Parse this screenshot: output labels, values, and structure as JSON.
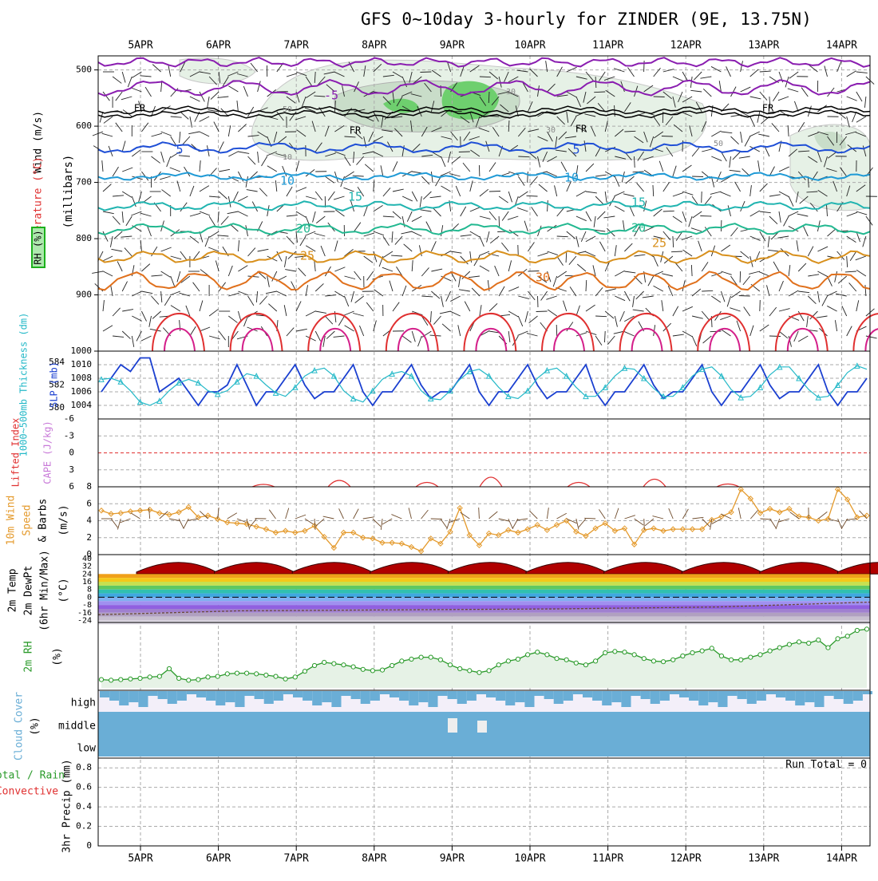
{
  "title": "GFS 0~10day 3-hourly for ZINDER (9E, 13.75N)",
  "run_total_label": "Run Total = 0",
  "date_labels": [
    "5APR",
    "6APR",
    "7APR",
    "8APR",
    "9APR",
    "10APR",
    "11APR",
    "12APR",
    "13APR",
    "14APR"
  ],
  "colors": {
    "rh_green": "#1cb01c",
    "temp_red": "#e03030",
    "temp_purple": "#8a1db0",
    "temp_blue": "#1f4fd6",
    "temp_lightblue": "#1f9ad6",
    "temp_teal": "#20b4b0",
    "temp_green": "#22b890",
    "temp_orange": "#d8901c",
    "temp_darkorange": "#e0701c",
    "temp_magenta": "#d41f8a",
    "slp_blue": "#1a3fd0",
    "thickness_cyan": "#25b9c8",
    "lifted_red": "#e03030",
    "wind_orange": "#e49a2c",
    "rh2m_green": "#2a9a2a",
    "cloud_blue": "#6aaed6",
    "cloud_bg": "#f3eff9"
  },
  "panels": {
    "upper": {
      "ylabel_wind": "Wind (m/s)",
      "ylabel_temp": "Temperature (°C)",
      "ylabel_rh": "RH (%)",
      "ylabel_pressure": "(millibars)",
      "yticks": [
        "500",
        "600",
        "700",
        "800",
        "900",
        "1000"
      ],
      "fr_label": "FR",
      "contour_labels": [
        "-5",
        "5",
        "10",
        "15",
        "20",
        "25",
        "30"
      ],
      "rh_labels": [
        "30",
        "50",
        "10"
      ]
    },
    "slp": {
      "ylabel_thk": "1000~500mb Thickness (dm)",
      "ylabel_slp": "SLP (mb)",
      "left_ticks": [
        "584",
        "582",
        "580"
      ],
      "right_ticks": [
        "1010",
        "1008",
        "1006",
        "1004"
      ]
    },
    "cape": {
      "ylabel_li": "Lifted Index",
      "ylabel_cape": "CAPE (J/kg)",
      "ticks": [
        "-6",
        "-3",
        "0",
        "3",
        "6"
      ]
    },
    "wind10": {
      "ylabel_a": "10m Wind",
      "ylabel_b": "Speed",
      "ylabel_c": "(m/s)",
      "ylabel_d": "& Barbs",
      "ticks": [
        "8",
        "6",
        "4",
        "2",
        "0"
      ]
    },
    "temp2m": {
      "ylabel_a": "2m Temp",
      "ylabel_b": "2m DewPt",
      "ylabel_c": "(6hr Min/Max)",
      "ylabel_d": "(°C)",
      "ticks": [
        "40",
        "32",
        "24",
        "16",
        "8",
        "0",
        "-8",
        "-16",
        "-24"
      ]
    },
    "rh2m": {
      "ylabel": "2m RH",
      "unit": "(%)"
    },
    "cloud": {
      "ylabel": "Cloud Cover",
      "unit": "(%)",
      "levels": [
        "high",
        "middle",
        "low"
      ]
    },
    "precip": {
      "ylabel_a": "Total / Rain",
      "ylabel_b": "Convective",
      "ylabel_c": "3hr Precip (mm)",
      "ticks": [
        "0.8",
        "0.6",
        "0.4",
        "0.2",
        "0"
      ]
    }
  },
  "chart_data": [
    {
      "type": "line",
      "name": "sea level pressure and thickness",
      "x_unit": "3-hourly steps from 4APR 12Z",
      "series": [
        {
          "name": "SLP (mb)",
          "values": [
            1006,
            1008,
            1010,
            1009,
            1011,
            1011,
            1006,
            1007,
            1008,
            1006,
            1004,
            1006,
            1006,
            1007,
            1010,
            1007,
            1004,
            1006,
            1006,
            1008,
            1010,
            1007,
            1005,
            1006,
            1006,
            1008,
            1010,
            1006,
            1004,
            1006,
            1006,
            1008,
            1010,
            1007,
            1005,
            1006,
            1006,
            1008,
            1010,
            1006,
            1004,
            1006,
            1006,
            1008,
            1010,
            1007,
            1005,
            1006,
            1006,
            1008,
            1010,
            1006,
            1004,
            1006,
            1006,
            1008,
            1010,
            1007,
            1005,
            1006,
            1006,
            1008,
            1010,
            1006,
            1004,
            1006,
            1006,
            1008,
            1010,
            1007,
            1005,
            1006,
            1006,
            1008,
            1010,
            1006,
            1004,
            1006,
            1006,
            1008
          ]
        },
        {
          "name": "1000~500mb Thickness (dm)",
          "values": [
            582.5,
            582.6,
            582.3,
            581.5,
            580.5,
            580.2,
            580.6,
            581.5,
            582.2,
            582.5,
            582.2,
            581.5,
            581.2,
            581.5,
            582.3,
            583.0,
            582.8,
            582.0,
            581.3,
            581.0,
            581.8,
            582.8,
            583.3,
            583.5,
            582.8,
            581.5,
            580.8,
            580.5,
            581.5,
            582.5,
            583.0,
            583.2,
            582.8,
            581.5,
            580.8,
            580.7,
            581.5,
            582.5,
            583.2,
            583.4,
            582.8,
            581.8,
            581.0,
            580.8,
            581.5,
            582.6,
            583.3,
            583.5,
            582.8,
            581.8,
            581.0,
            581.0,
            581.8,
            582.8,
            583.5,
            583.4,
            582.6,
            581.7,
            581.0,
            581.0,
            581.8,
            582.8,
            583.4,
            583.6,
            582.8,
            581.6,
            580.9,
            581.0,
            581.8,
            582.9,
            583.6,
            583.6,
            582.6,
            581.6,
            580.9,
            581.0,
            582.0,
            583.1,
            583.7,
            583.4
          ]
        }
      ],
      "ylim_slp": [
        1002,
        1012
      ],
      "ylim_thk": [
        579,
        585
      ]
    },
    {
      "type": "line",
      "name": "10m wind speed",
      "series": [
        {
          "name": "10m Wind Speed (m/s)",
          "values": [
            5.2,
            4.8,
            4.9,
            5.1,
            5.2,
            5.3,
            4.9,
            4.7,
            5.0,
            5.6,
            4.4,
            4.6,
            4.2,
            3.8,
            3.7,
            3.6,
            3.3,
            3.0,
            2.6,
            2.8,
            2.6,
            2.8,
            3.4,
            2.1,
            0.8,
            2.6,
            2.6,
            2.0,
            1.9,
            1.4,
            1.4,
            1.3,
            0.9,
            0.4,
            1.9,
            1.3,
            2.7,
            5.5,
            2.3,
            1.1,
            2.5,
            2.3,
            2.9,
            2.6,
            3.0,
            3.5,
            2.9,
            3.5,
            4.0,
            2.7,
            2.2,
            3.1,
            3.7,
            2.8,
            3.1,
            1.2,
            2.9,
            3.1,
            2.8,
            3.0,
            3.0,
            3.0,
            3.0,
            4.1,
            4.5,
            5.0,
            7.7,
            6.6,
            4.9,
            5.4,
            5.0,
            5.4,
            4.5,
            4.4,
            4.0,
            4.2,
            7.7,
            6.5,
            4.4,
            4.6
          ]
        }
      ],
      "ylim": [
        0,
        8
      ]
    },
    {
      "type": "line",
      "name": "2m relative humidity",
      "series": [
        {
          "name": "2m RH",
          "values": [
            13,
            12,
            13,
            14,
            15,
            17,
            18,
            30,
            15,
            12,
            13,
            17,
            18,
            22,
            23,
            23,
            22,
            20,
            18,
            14,
            17,
            26,
            35,
            40,
            38,
            36,
            33,
            29,
            27,
            28,
            35,
            42,
            45,
            48,
            48,
            44,
            36,
            30,
            27,
            24,
            27,
            36,
            42,
            45,
            52,
            56,
            52,
            46,
            44,
            39,
            36,
            42,
            55,
            57,
            56,
            52,
            46,
            42,
            41,
            44,
            50,
            55,
            58,
            62,
            50,
            44,
            44,
            48,
            52,
            58,
            63,
            68,
            72,
            70,
            75,
            63,
            77,
            81,
            90,
            92
          ]
        }
      ],
      "ylim": [
        0,
        100
      ]
    }
  ]
}
